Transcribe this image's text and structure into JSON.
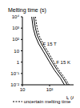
{
  "chart_data": {
    "type": "line",
    "ylabel": "Melting time (s)",
    "xlabel": "Iₖ (A)",
    "log": true,
    "grid": false,
    "legend": "bottom",
    "xlim": [
      10,
      1000
    ],
    "xticks": [
      10,
      {
        "value": 100,
        "label": "10²"
      }
    ],
    "ylim": [
      0.01,
      10000
    ],
    "yticks": [
      {
        "value": 0.01,
        "label": "10⁻²"
      },
      {
        "value": 0.1,
        "label": "10⁻¹"
      },
      1,
      10,
      {
        "value": 100,
        "label": "10²"
      },
      {
        "value": 1000,
        "label": "10³"
      },
      {
        "value": 10000,
        "label": "10⁴"
      }
    ],
    "series": [
      {
        "name": "F 15 T",
        "color": "#000000",
        "line_style": "solid",
        "x": [
          22,
          25,
          30,
          40,
          60,
          100,
          150,
          250,
          350
        ],
        "values": [
          10000,
          1000,
          200,
          40,
          8,
          1,
          0.2,
          0.04,
          0.01
        ]
      },
      {
        "name": "F 15 K",
        "color": "#000000",
        "line_style": "solid",
        "x": [
          26,
          30,
          36,
          50,
          75,
          125,
          190,
          310,
          450
        ],
        "values": [
          10000,
          1000,
          200,
          40,
          8,
          1,
          0.2,
          0.04,
          0.01
        ]
      },
      {
        "name": "uncertain melting time",
        "color": "#000000",
        "line_style": "dashed",
        "x": [
          30,
          35,
          42,
          58,
          88,
          145,
          220,
          360,
          520
        ],
        "values": [
          10000,
          1000,
          200,
          40,
          8,
          1,
          0.2,
          0.04,
          0.01
        ]
      }
    ]
  }
}
